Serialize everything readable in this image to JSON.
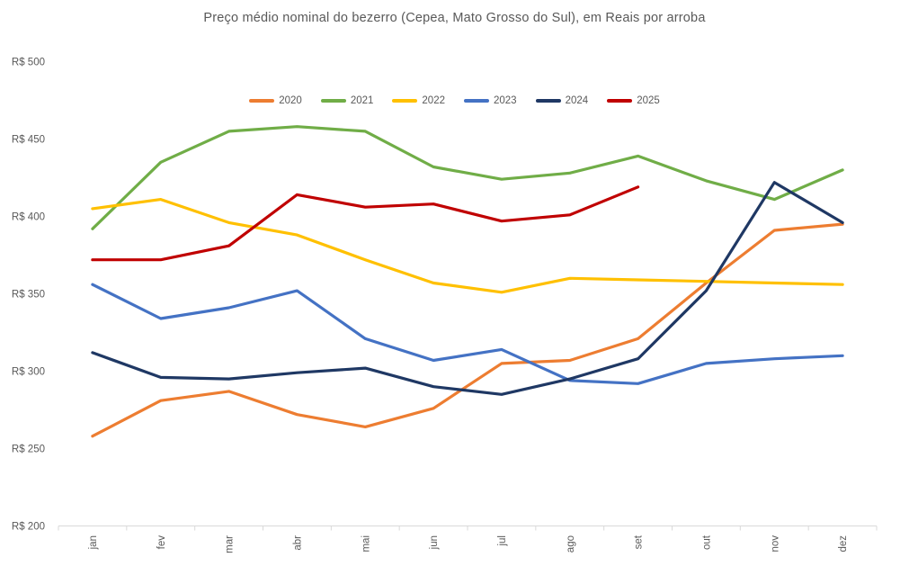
{
  "title": "Preço médio nominal do bezerro (Cepea, Mato Grosso do Sul), em Reais por arroba",
  "colors": {
    "title_text": "#595959",
    "axis_text": "#595959",
    "axis_line": "#D9D9D9"
  },
  "chart_data": {
    "type": "line",
    "title": "Preço médio nominal do bezerro (Cepea, Mato Grosso do Sul), em Reais por arroba",
    "categories": [
      "jan",
      "fev",
      "mar",
      "abr",
      "mai",
      "jun",
      "jul",
      "ago",
      "set",
      "out",
      "nov",
      "dez"
    ],
    "series": [
      {
        "name": "2020",
        "color": "#ED7D31",
        "values": [
          258,
          281,
          287,
          272,
          264,
          276,
          305,
          307,
          321,
          357,
          391,
          395
        ]
      },
      {
        "name": "2021",
        "color": "#70AD47",
        "values": [
          392,
          435,
          455,
          458,
          455,
          432,
          424,
          428,
          439,
          423,
          411,
          430
        ]
      },
      {
        "name": "2022",
        "color": "#FFC000",
        "values": [
          405,
          411,
          396,
          388,
          372,
          357,
          351,
          360,
          359,
          358,
          357,
          356
        ]
      },
      {
        "name": "2023",
        "color": "#4472C4",
        "values": [
          356,
          334,
          341,
          352,
          321,
          307,
          314,
          294,
          292,
          305,
          308,
          310
        ]
      },
      {
        "name": "2024",
        "color": "#1F3864",
        "values": [
          312,
          296,
          295,
          299,
          302,
          290,
          285,
          295,
          308,
          352,
          422,
          396
        ]
      },
      {
        "name": "2025",
        "color": "#C00000",
        "values": [
          372,
          372,
          381,
          414,
          406,
          408,
          397,
          401,
          419,
          null,
          null,
          null
        ]
      }
    ],
    "ylim": [
      200,
      500
    ],
    "ytick_step": 50,
    "ytick_labels": [
      "R$ 200",
      "R$ 250",
      "R$ 300",
      "R$ 350",
      "R$ 400",
      "R$ 450",
      "R$ 500"
    ],
    "xlabel": "",
    "ylabel": "",
    "grid": false,
    "legend_position": "top-center"
  }
}
